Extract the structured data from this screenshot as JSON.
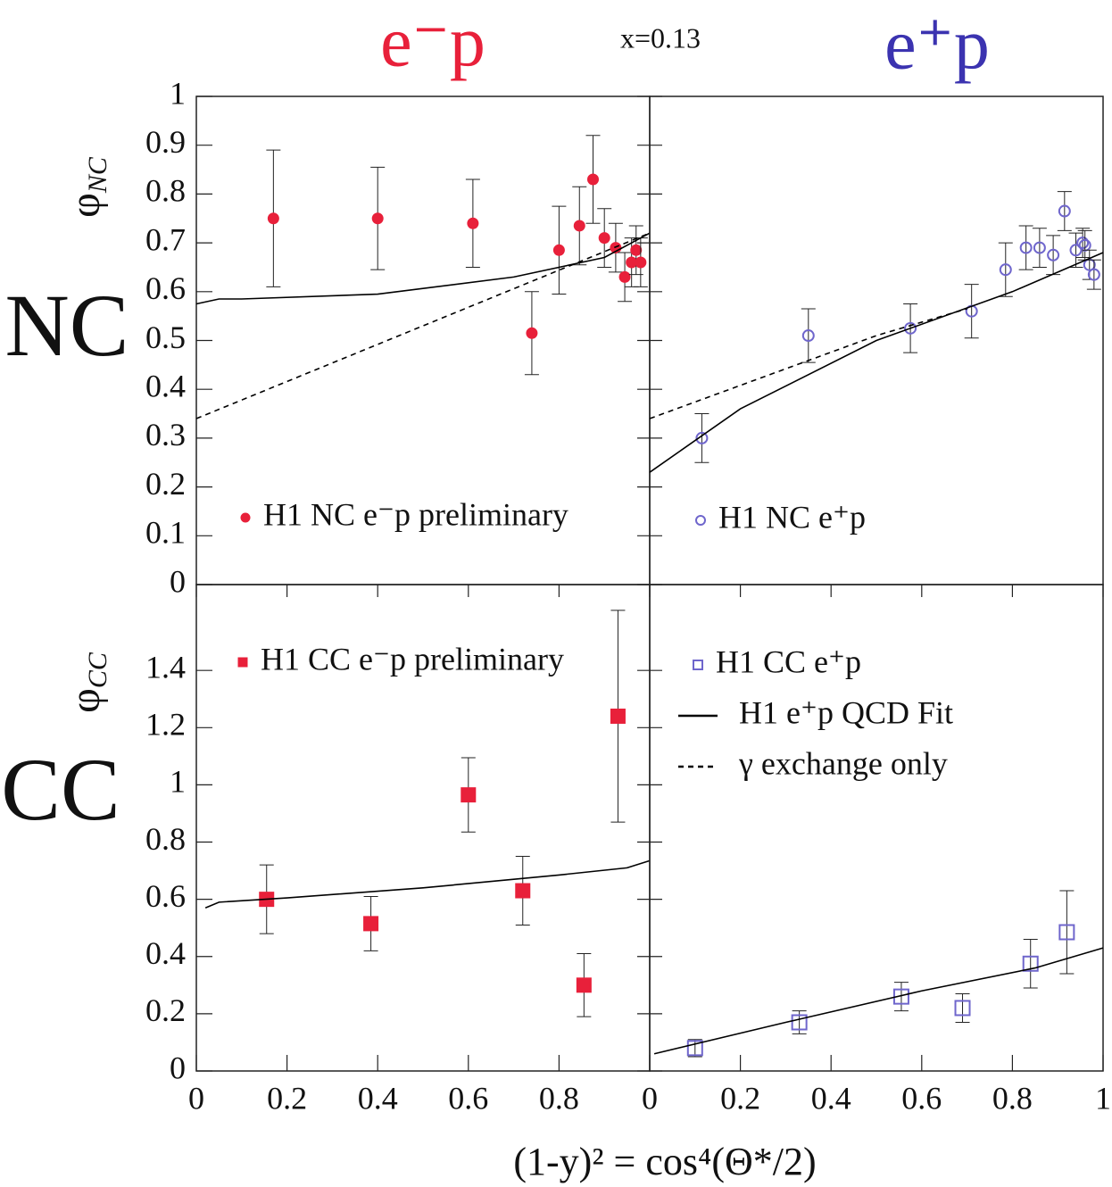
{
  "figure": {
    "column_titles": [
      "e⁻p",
      "e⁺p"
    ],
    "note": "x=0.13",
    "row_labels": [
      "NC",
      "CC"
    ],
    "x_label": "(1-y)² = cos⁴(Θ*/2)"
  },
  "chart_data": [
    {
      "type": "scatter",
      "ylabel": {
        "symbol": "φ",
        "subscript": "NC"
      },
      "xlim": [
        0,
        1
      ],
      "ylim": [
        0,
        1
      ],
      "yticks": [
        0,
        0.1,
        0.2,
        0.3,
        0.4,
        0.5,
        0.6,
        0.7,
        0.8,
        0.9,
        1
      ],
      "series": [
        {
          "name": "H1 NC e⁻p preliminary",
          "color": "#e8203a",
          "marker": "filled-circle",
          "x": [
            0.17,
            0.4,
            0.61,
            0.74,
            0.8,
            0.845,
            0.875,
            0.9,
            0.925,
            0.945,
            0.96,
            0.97,
            0.98
          ],
          "values": [
            0.75,
            0.75,
            0.74,
            0.515,
            0.685,
            0.735,
            0.83,
            0.71,
            0.69,
            0.63,
            0.66,
            0.685,
            0.66
          ],
          "errors": [
            0.14,
            0.105,
            0.09,
            0.085,
            0.09,
            0.08,
            0.09,
            0.06,
            0.05,
            0.05,
            0.05,
            0.05,
            0.05
          ]
        },
        {
          "color": "#000000",
          "style": "solid",
          "x": [
            0,
            0.05,
            0.1,
            0.4,
            0.7,
            0.9,
            1
          ],
          "values": [
            0.575,
            0.585,
            0.585,
            0.595,
            0.63,
            0.67,
            0.72
          ]
        },
        {
          "color": "#000000",
          "style": "dashed",
          "x": [
            0,
            0.5,
            1
          ],
          "values": [
            0.34,
            0.53,
            0.72
          ]
        }
      ]
    },
    {
      "type": "scatter",
      "xlim": [
        0,
        1
      ],
      "ylim": [
        0,
        1
      ],
      "series": [
        {
          "name": "H1 NC e⁺p",
          "color": "#6f66cc",
          "marker": "open-circle",
          "x": [
            0.115,
            0.35,
            0.575,
            0.71,
            0.785,
            0.83,
            0.86,
            0.89,
            0.915,
            0.94,
            0.955,
            0.96,
            0.97,
            0.98
          ],
          "values": [
            0.3,
            0.51,
            0.525,
            0.56,
            0.645,
            0.69,
            0.69,
            0.675,
            0.765,
            0.685,
            0.7,
            0.695,
            0.655,
            0.635
          ],
          "errors": [
            0.05,
            0.055,
            0.05,
            0.055,
            0.055,
            0.045,
            0.04,
            0.04,
            0.04,
            0.035,
            0.03,
            0.03,
            0.03,
            0.03
          ]
        },
        {
          "color": "#000000",
          "style": "solid",
          "x": [
            0,
            0.2,
            0.5,
            0.8,
            1
          ],
          "values": [
            0.23,
            0.36,
            0.5,
            0.6,
            0.68
          ]
        },
        {
          "color": "#000000",
          "style": "dashed",
          "x": [
            0,
            0.5,
            0.7
          ],
          "values": [
            0.34,
            0.51,
            0.565
          ]
        }
      ]
    },
    {
      "type": "scatter",
      "ylabel": {
        "symbol": "φ",
        "subscript": "CC"
      },
      "xlim": [
        0,
        1
      ],
      "ylim": [
        0,
        1.7
      ],
      "xticks": [
        0,
        0.2,
        0.4,
        0.6,
        0.8
      ],
      "yticks": [
        0,
        0.2,
        0.4,
        0.6,
        0.8,
        1,
        1.2,
        1.4
      ],
      "series": [
        {
          "name": "H1 CC e⁻p preliminary",
          "color": "#e8203a",
          "marker": "filled-square",
          "x": [
            0.155,
            0.385,
            0.6,
            0.72,
            0.855,
            0.93
          ],
          "values": [
            0.6,
            0.515,
            0.965,
            0.63,
            0.3,
            1.24
          ],
          "errors": [
            0.12,
            0.095,
            0.13,
            0.12,
            0.11,
            0.37
          ]
        },
        {
          "color": "#000000",
          "style": "solid",
          "x": [
            0.02,
            0.05,
            0.2,
            0.5,
            0.8,
            0.95,
            1
          ],
          "values": [
            0.57,
            0.59,
            0.605,
            0.64,
            0.685,
            0.71,
            0.735
          ]
        }
      ]
    },
    {
      "type": "scatter",
      "xlim": [
        0,
        1
      ],
      "ylim": [
        0,
        1.7
      ],
      "xticks": [
        0,
        0.2,
        0.4,
        0.6,
        0.8,
        1
      ],
      "series": [
        {
          "name": "H1 CC e⁺p",
          "color": "#6f66cc",
          "marker": "open-square",
          "x": [
            0.1,
            0.33,
            0.555,
            0.69,
            0.84,
            0.92
          ],
          "values": [
            0.08,
            0.17,
            0.26,
            0.22,
            0.375,
            0.485
          ],
          "errors": [
            0.03,
            0.04,
            0.05,
            0.05,
            0.085,
            0.145
          ]
        },
        {
          "color": "#000000",
          "style": "solid",
          "x": [
            0.01,
            0.3,
            0.6,
            0.85,
            1
          ],
          "values": [
            0.06,
            0.17,
            0.28,
            0.36,
            0.43
          ]
        }
      ],
      "legend_extra": [
        {
          "name": "H1 e⁺p QCD Fit",
          "style": "solid"
        },
        {
          "name": "γ exchange only",
          "style": "dashed"
        }
      ]
    }
  ]
}
